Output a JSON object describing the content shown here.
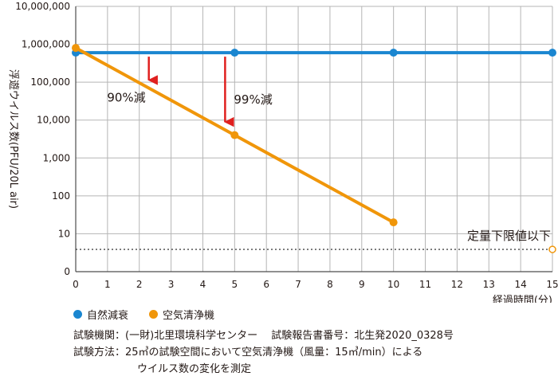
{
  "chart_data": {
    "type": "line",
    "ylabel": "浮遊ウイルス数(PFU/20L air)",
    "xlabel": "経過時間(分)",
    "scale_y": "log",
    "xlim": [
      0,
      15
    ],
    "ylim_tick_labels": [
      "0",
      "10",
      "100",
      "1,000",
      "10,000",
      "100,000",
      "1,000,000",
      "10,000,000"
    ],
    "x_ticks": [
      "0",
      "1",
      "2",
      "3",
      "4",
      "5",
      "6",
      "7",
      "8",
      "9",
      "10",
      "11",
      "12",
      "13",
      "14",
      "15"
    ],
    "grid": true,
    "series": [
      {
        "name": "自然減衰",
        "color": "#1a86d0",
        "x": [
          0,
          5,
          10,
          15
        ],
        "y": [
          600000,
          600000,
          600000,
          600000
        ]
      },
      {
        "name": "空気清浄機",
        "color": "#f0960a",
        "x": [
          0,
          5,
          10
        ],
        "y": [
          800000,
          4000,
          20
        ]
      }
    ],
    "detection_limit": {
      "label": "定量下限値以下",
      "y": 2,
      "at_x": 15
    },
    "annotations": [
      {
        "text": "90%減",
        "x": 2.3
      },
      {
        "text": "99%減",
        "x": 4.7
      }
    ],
    "arrow_color": "#e0201f"
  },
  "notes": {
    "line1": "試験機関：(一財)北里環境科学センター　 試験報告書番号：北生発2020_0328号",
    "line2": "試験方法：25㎥の試験空間において空気清浄機（風量：15㎥/min）による",
    "line3": "ウイルス数の変化を測定"
  }
}
